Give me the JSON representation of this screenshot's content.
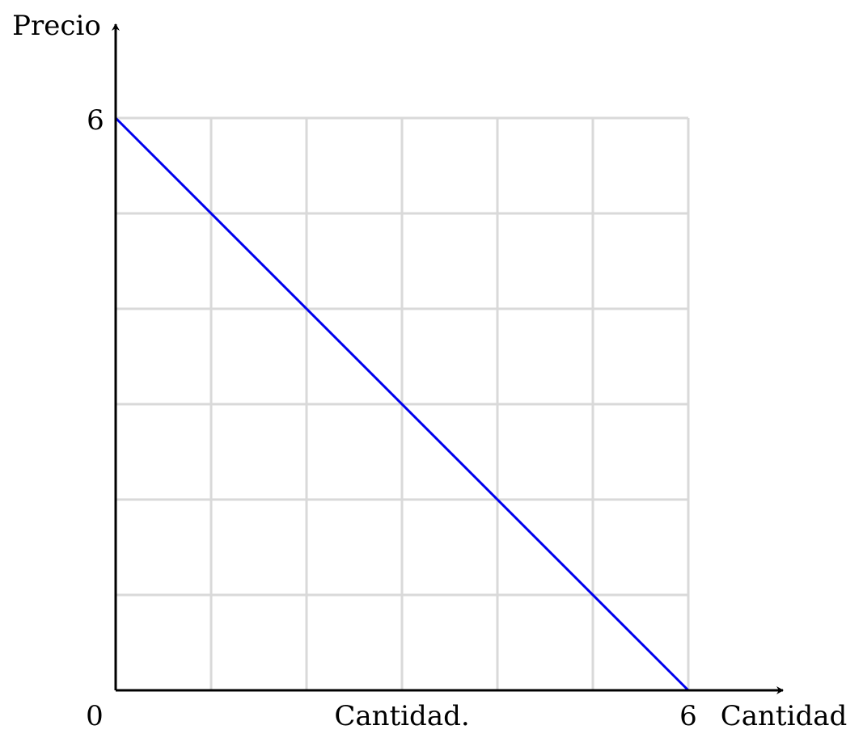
{
  "chart_data": {
    "type": "line",
    "ylabel": "Precio",
    "xlabel": "Cantidad",
    "caption": "Cantidad.",
    "origin_label": "0",
    "x_tick_label": "6",
    "y_tick_label": "6",
    "xlim": [
      0,
      6
    ],
    "ylim": [
      0,
      6
    ],
    "grid": true,
    "grid_step": 1,
    "series": [
      {
        "x": [
          0,
          6
        ],
        "y": [
          6,
          0
        ],
        "color": "#0000ee"
      }
    ],
    "colors": {
      "grid": "#d9d9d9",
      "axis": "#000000",
      "line": "#0000ee"
    }
  }
}
